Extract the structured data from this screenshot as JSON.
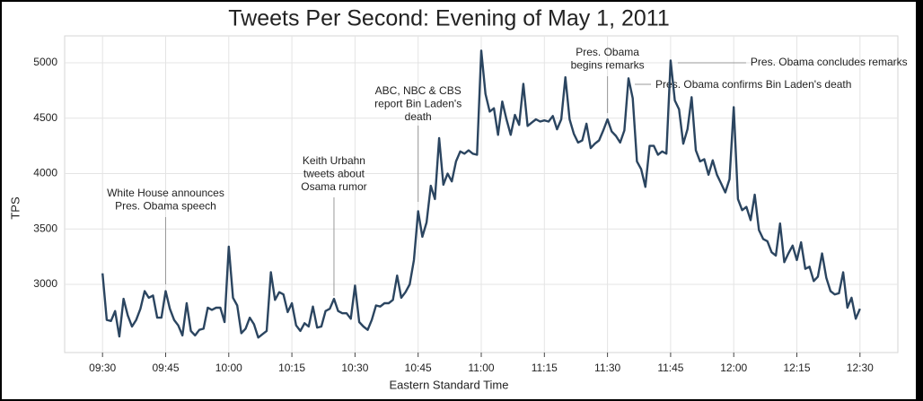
{
  "chart_data": {
    "type": "line",
    "title": "Tweets Per Second: Evening of May 1, 2011",
    "x_label": "Eastern Standard Time",
    "y_label": "TPS",
    "xlim": [
      "09:21",
      "12:39"
    ],
    "ylim": [
      2385,
      5243
    ],
    "xticks": [
      "09:30",
      "09:45",
      "10:00",
      "10:15",
      "10:30",
      "10:45",
      "11:00",
      "11:15",
      "11:30",
      "11:45",
      "12:00",
      "12:15",
      "12:30"
    ],
    "yticks": [
      3000,
      3500,
      4000,
      4500,
      5000
    ],
    "grid": true,
    "x": [
      "09:30",
      "09:31",
      "09:32",
      "09:33",
      "09:34",
      "09:35",
      "09:36",
      "09:37",
      "09:38",
      "09:39",
      "09:40",
      "09:41",
      "09:42",
      "09:43",
      "09:44",
      "09:45",
      "09:46",
      "09:47",
      "09:48",
      "09:49",
      "09:50",
      "09:51",
      "09:52",
      "09:53",
      "09:54",
      "09:55",
      "09:56",
      "09:57",
      "09:58",
      "09:59",
      "10:00",
      "10:01",
      "10:02",
      "10:03",
      "10:04",
      "10:05",
      "10:06",
      "10:07",
      "10:08",
      "10:09",
      "10:10",
      "10:11",
      "10:12",
      "10:13",
      "10:14",
      "10:15",
      "10:16",
      "10:17",
      "10:18",
      "10:19",
      "10:20",
      "10:21",
      "10:22",
      "10:23",
      "10:24",
      "10:25",
      "10:26",
      "10:27",
      "10:28",
      "10:29",
      "10:30",
      "10:31",
      "10:32",
      "10:33",
      "10:34",
      "10:35",
      "10:36",
      "10:37",
      "10:38",
      "10:39",
      "10:40",
      "10:41",
      "10:42",
      "10:43",
      "10:44",
      "10:45",
      "10:46",
      "10:47",
      "10:48",
      "10:49",
      "10:50",
      "10:51",
      "10:52",
      "10:53",
      "10:54",
      "10:55",
      "10:56",
      "10:57",
      "10:58",
      "10:59",
      "11:00",
      "11:01",
      "11:02",
      "11:03",
      "11:04",
      "11:05",
      "11:06",
      "11:07",
      "11:08",
      "11:09",
      "11:10",
      "11:11",
      "11:12",
      "11:13",
      "11:14",
      "11:15",
      "11:16",
      "11:17",
      "11:18",
      "11:19",
      "11:20",
      "11:21",
      "11:22",
      "11:23",
      "11:24",
      "11:25",
      "11:26",
      "11:27",
      "11:28",
      "11:29",
      "11:30",
      "11:31",
      "11:32",
      "11:33",
      "11:34",
      "11:35",
      "11:36",
      "11:37",
      "11:38",
      "11:39",
      "11:40",
      "11:41",
      "11:42",
      "11:43",
      "11:44",
      "11:45",
      "11:46",
      "11:47",
      "11:48",
      "11:49",
      "11:50",
      "11:51",
      "11:52",
      "11:53",
      "11:54",
      "11:55",
      "11:56",
      "11:57",
      "11:58",
      "11:59",
      "12:00",
      "12:01",
      "12:02",
      "12:03",
      "12:04",
      "12:05",
      "12:06",
      "12:07",
      "12:08",
      "12:09",
      "12:10",
      "12:11",
      "12:12",
      "12:13",
      "12:14",
      "12:15",
      "12:16",
      "12:17",
      "12:18",
      "12:19",
      "12:20",
      "12:21",
      "12:22",
      "12:23",
      "12:24",
      "12:25",
      "12:26",
      "12:27",
      "12:28",
      "12:29",
      "12:30"
    ],
    "series": [
      {
        "name": "TPS",
        "color": "#2b4560",
        "values": [
          3100,
          2680,
          2670,
          2760,
          2530,
          2870,
          2720,
          2620,
          2680,
          2780,
          2940,
          2880,
          2900,
          2700,
          2700,
          2940,
          2780,
          2680,
          2630,
          2540,
          2830,
          2580,
          2540,
          2590,
          2600,
          2790,
          2770,
          2790,
          2790,
          2660,
          3340,
          2880,
          2810,
          2560,
          2600,
          2700,
          2640,
          2520,
          2550,
          2580,
          3110,
          2860,
          2930,
          2910,
          2750,
          2830,
          2630,
          2580,
          2650,
          2620,
          2800,
          2610,
          2620,
          2760,
          2780,
          2870,
          2760,
          2740,
          2740,
          2690,
          2990,
          2660,
          2620,
          2590,
          2680,
          2810,
          2800,
          2830,
          2830,
          2860,
          3080,
          2880,
          2930,
          3000,
          3220,
          3660,
          3430,
          3560,
          3890,
          3770,
          4320,
          3900,
          4000,
          3930,
          4110,
          4200,
          4180,
          4210,
          4180,
          4170,
          5110,
          4720,
          4560,
          4590,
          4350,
          4650,
          4490,
          4350,
          4530,
          4440,
          4810,
          4430,
          4460,
          4490,
          4470,
          4480,
          4470,
          4520,
          4400,
          4490,
          4870,
          4490,
          4360,
          4280,
          4300,
          4450,
          4230,
          4270,
          4300,
          4390,
          4490,
          4380,
          4340,
          4280,
          4390,
          4860,
          4680,
          4110,
          4040,
          3880,
          4250,
          4250,
          4170,
          4200,
          4180,
          5020,
          4660,
          4580,
          4270,
          4400,
          4690,
          4210,
          4110,
          4130,
          3990,
          4120,
          3990,
          3910,
          3830,
          3950,
          4600,
          3770,
          3670,
          3700,
          3580,
          3810,
          3490,
          3410,
          3390,
          3290,
          3260,
          3550,
          3200,
          3280,
          3350,
          3220,
          3380,
          3140,
          3160,
          3030,
          3070,
          3280,
          3060,
          2940,
          2910,
          2920,
          3110,
          2790,
          2880,
          2690,
          2780
        ]
      }
    ],
    "annotations": [
      {
        "x": "09:45",
        "lines": [
          "White House announces",
          "Pres. Obama speech"
        ]
      },
      {
        "x": "10:25",
        "lines": [
          "Keith Urbahn",
          "tweets about",
          "Osama rumor"
        ]
      },
      {
        "x": "10:45",
        "lines": [
          "ABC, NBC & CBS",
          "report Bin Laden's",
          "death"
        ]
      },
      {
        "x": "11:30",
        "lines": [
          "Pres. Obama",
          "begins remarks"
        ]
      },
      {
        "x": "11:35",
        "lines": [
          "Pres. Obama confirms Bin Laden's death"
        ]
      },
      {
        "x": "11:45",
        "lines": [
          "Pres. Obama concludes remarks"
        ]
      }
    ]
  }
}
